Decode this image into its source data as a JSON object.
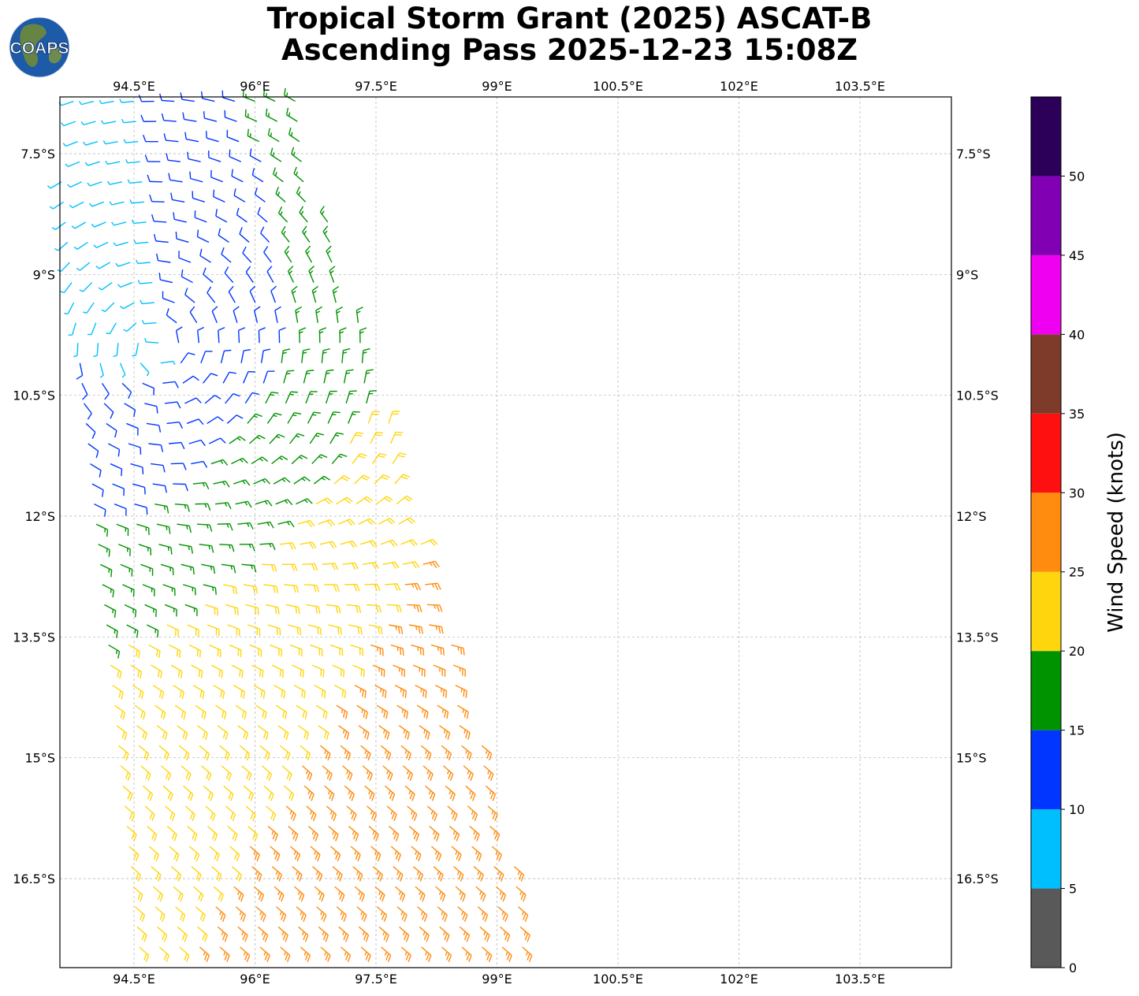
{
  "title": {
    "line1": "Tropical Storm Grant (2025) ASCAT-B",
    "line2": "Ascending Pass 2025-12-23 15:08Z"
  },
  "logo": {
    "text": "COAPS",
    "icon": "globe-logo",
    "ocean_color": "#1d5aa8",
    "land_color": "#6f8a3a"
  },
  "map": {
    "lon_range": [
      93.5,
      105.0
    ],
    "lat_range": [
      -17.7,
      -6.8
    ],
    "lon_ticks": [
      {
        "value": 94.5,
        "label": "94.5°E"
      },
      {
        "value": 96.0,
        "label": "96°E"
      },
      {
        "value": 97.5,
        "label": "97.5°E"
      },
      {
        "value": 99.0,
        "label": "99°E"
      },
      {
        "value": 100.5,
        "label": "100.5°E"
      },
      {
        "value": 102.0,
        "label": "102°E"
      },
      {
        "value": 103.5,
        "label": "103.5°E"
      }
    ],
    "lat_ticks": [
      {
        "value": -7.5,
        "label": "7.5°S"
      },
      {
        "value": -9.0,
        "label": "9°S"
      },
      {
        "value": -10.5,
        "label": "10.5°S"
      },
      {
        "value": -12.0,
        "label": "12°S"
      },
      {
        "value": -13.5,
        "label": "13.5°S"
      },
      {
        "value": -15.0,
        "label": "15°S"
      },
      {
        "value": -16.5,
        "label": "16.5°S"
      }
    ],
    "gridlines": true,
    "grid_color": "#b0b0b0"
  },
  "wind_field": {
    "storm_center": {
      "lon": 94.8,
      "lat": -9.9
    },
    "swath_left_edge": {
      "top_lon": 93.5,
      "bottom_lon": 94.6
    },
    "swath_right_edge": {
      "top_lon": 96.5,
      "bottom_lon": 99.65
    },
    "lat_top": -6.85,
    "lat_bottom": -17.7
  },
  "colorbar": {
    "label": "Wind Speed (knots)",
    "bins": [
      {
        "min": 0,
        "max": 5,
        "color": "#595959"
      },
      {
        "min": 5,
        "max": 10,
        "color": "#00bfff"
      },
      {
        "min": 10,
        "max": 15,
        "color": "#0036ff"
      },
      {
        "min": 15,
        "max": 20,
        "color": "#009300"
      },
      {
        "min": 20,
        "max": 25,
        "color": "#ffd60e"
      },
      {
        "min": 25,
        "max": 30,
        "color": "#ff8c0e"
      },
      {
        "min": 30,
        "max": 35,
        "color": "#ff1010"
      },
      {
        "min": 35,
        "max": 40,
        "color": "#7f3b2a"
      },
      {
        "min": 40,
        "max": 45,
        "color": "#f000f0"
      },
      {
        "min": 45,
        "max": 50,
        "color": "#8200b4"
      },
      {
        "min": 50,
        "max": 55,
        "color": "#2c0059"
      }
    ],
    "tick_values": [
      0,
      5,
      10,
      15,
      20,
      25,
      30,
      35,
      40,
      45,
      50
    ],
    "tick_labels": [
      "0",
      "5",
      "10",
      "15",
      "20",
      "25",
      "30",
      "35",
      "40",
      "45",
      "50"
    ]
  }
}
